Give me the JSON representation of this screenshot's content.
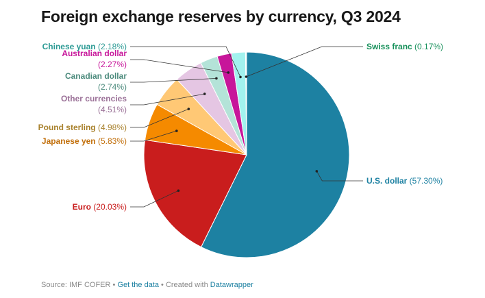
{
  "chart_data": {
    "type": "pie",
    "title": "Foreign exchange reserves by currency, Q3 2024",
    "slices": [
      {
        "name": "U.S. dollar",
        "value": 57.3,
        "label": "(57.30%)",
        "color": "#1d81a2",
        "text_color": "#1d81a2"
      },
      {
        "name": "Euro",
        "value": 20.03,
        "label": "(20.03%)",
        "color": "#c91d1d",
        "text_color": "#c91d1d"
      },
      {
        "name": "Japanese yen",
        "value": 5.83,
        "label": "(5.83%)",
        "color": "#f58a00",
        "text_color": "#c2700c"
      },
      {
        "name": "Pound sterling",
        "value": 4.98,
        "label": "(4.98%)",
        "color": "#ffc875",
        "text_color": "#a8812c"
      },
      {
        "name": "Other currencies",
        "value": 4.51,
        "label": "(4.51%)",
        "color": "#e5c6e3",
        "text_color": "#9a7097"
      },
      {
        "name": "Canadian dollar",
        "value": 2.74,
        "label": "(2.74%)",
        "color": "#b4e3d8",
        "text_color": "#4b8a7c"
      },
      {
        "name": "Australian dollar",
        "value": 2.27,
        "label": "(2.27%)",
        "color": "#c7169a",
        "text_color": "#c7169a"
      },
      {
        "name": "Chinese yuan",
        "value": 2.18,
        "label": "(2.18%)",
        "color": "#a2f2ee",
        "text_color": "#2b9a94"
      },
      {
        "name": "Swiss franc",
        "value": 0.17,
        "label": "(0.17%)",
        "color": "#e0f8f5",
        "text_color": "#16905a"
      }
    ]
  },
  "footer": {
    "source": "Source: IMF COFER",
    "sep1": " • ",
    "get_data": "Get the data",
    "sep2": " • Created with ",
    "made_with": "Datawrapper"
  }
}
